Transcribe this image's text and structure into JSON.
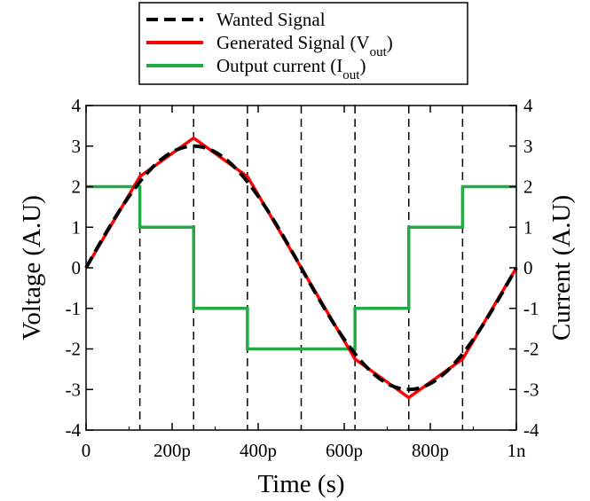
{
  "chart_data": {
    "type": "line",
    "title": "",
    "xlabel": "Time (s)",
    "ylabel": "Voltage (A.U)",
    "y2label": "Current (A.U)",
    "xlim": [
      0,
      1000
    ],
    "ylim": [
      -4,
      4
    ],
    "y2lim": [
      -4,
      4
    ],
    "x_unit": "ps",
    "x_ticks": [
      0,
      200,
      400,
      600,
      800,
      1000
    ],
    "x_tick_labels": [
      "0",
      "200p",
      "400p",
      "600p",
      "800p",
      "1n"
    ],
    "y_ticks": [
      -4,
      -3,
      -2,
      -1,
      0,
      1,
      2,
      3,
      4
    ],
    "y_tick_labels": [
      "-4",
      "-3",
      "-2",
      "-1",
      "0",
      "1",
      "2",
      "3",
      "4"
    ],
    "y2_ticks": [
      -4,
      -3,
      -2,
      -1,
      0,
      1,
      2,
      3,
      4
    ],
    "y2_tick_labels": [
      "-4",
      "-3",
      "-2",
      "-1",
      "0",
      "1",
      "2",
      "3",
      "4"
    ],
    "vertical_dashed_lines_x": [
      125,
      250,
      375,
      500,
      625,
      750,
      875
    ],
    "grid": false,
    "legend_position": "top-center",
    "legend": [
      {
        "text": "Wanted Signal",
        "sub": ""
      },
      {
        "text": "Generated Signal (V",
        "sub": "out",
        "suffix": ")"
      },
      {
        "text": "Output current (I",
        "sub": "out",
        "suffix": ")"
      }
    ],
    "series": [
      {
        "name": "Wanted Signal",
        "axis": "left",
        "color": "#000000",
        "style": "dashed",
        "function": "sine",
        "amplitude": 3.0,
        "period": 1000
      },
      {
        "name": "Generated Signal (Vout)",
        "axis": "left",
        "color": "#ff0000",
        "style": "solid",
        "x": [
          0,
          125,
          250,
          375,
          500,
          625,
          750,
          875,
          1000
        ],
        "y": [
          0,
          2.25,
          3.2,
          2.25,
          0,
          -2.25,
          -3.2,
          -2.25,
          0
        ]
      },
      {
        "name": "Output current (Iout)",
        "axis": "right",
        "color": "#22aa44",
        "style": "step",
        "x": [
          0,
          125,
          125,
          250,
          250,
          375,
          375,
          625,
          625,
          750,
          750,
          875,
          875,
          1000
        ],
        "y": [
          2,
          2,
          1,
          1,
          -1,
          -1,
          -2,
          -2,
          -1,
          -1,
          1,
          1,
          2,
          2
        ]
      }
    ]
  }
}
